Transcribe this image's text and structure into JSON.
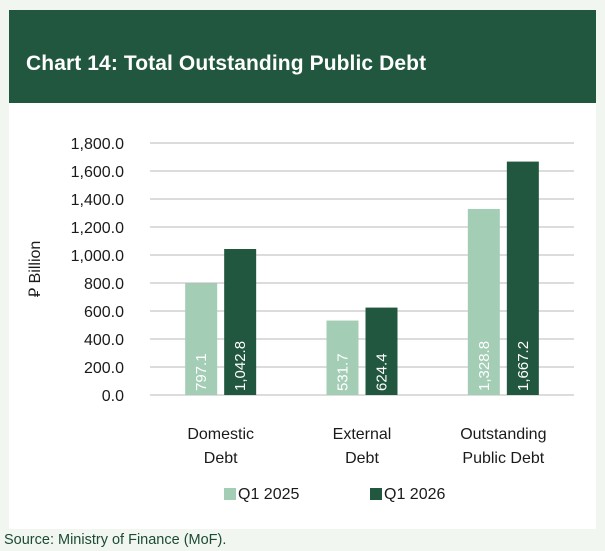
{
  "header": {
    "title": "Chart 14: Total Outstanding Public Debt"
  },
  "source": "Source: Ministry of Finance (MoF).",
  "colors": {
    "header_bg": "#22573f",
    "frame_bg": "#f1f7f0",
    "q1_2025": "#a4cdb6",
    "q1_2026": "#22573f"
  },
  "chart_data": {
    "type": "bar",
    "title": "Chart 14: Total Outstanding Public Debt",
    "xlabel": "",
    "ylabel": "⃁ Billion",
    "ylim": [
      0,
      1800
    ],
    "yticks": [
      "1,800.0",
      "1,600.0",
      "1,400.0",
      "1,200.0",
      "1,000.0",
      "800.0",
      "600.0",
      "400.0",
      "200.0",
      "0.0"
    ],
    "grid": true,
    "legend_position": "bottom",
    "categories": [
      [
        "Domestic",
        "Debt"
      ],
      [
        "External",
        "Debt"
      ],
      [
        "Outstanding",
        "Public Debt"
      ]
    ],
    "series": [
      {
        "name": "Q1 2025",
        "color": "#a4cdb6",
        "values": [
          797.1,
          531.7,
          1328.8
        ],
        "labels": [
          "797.1",
          "531.7",
          "1,328.8"
        ]
      },
      {
        "name": "Q1 2026",
        "color": "#22573f",
        "values": [
          1042.8,
          624.4,
          1667.2
        ],
        "labels": [
          "1,042.8",
          "624.4",
          "1,667.2"
        ]
      }
    ]
  }
}
